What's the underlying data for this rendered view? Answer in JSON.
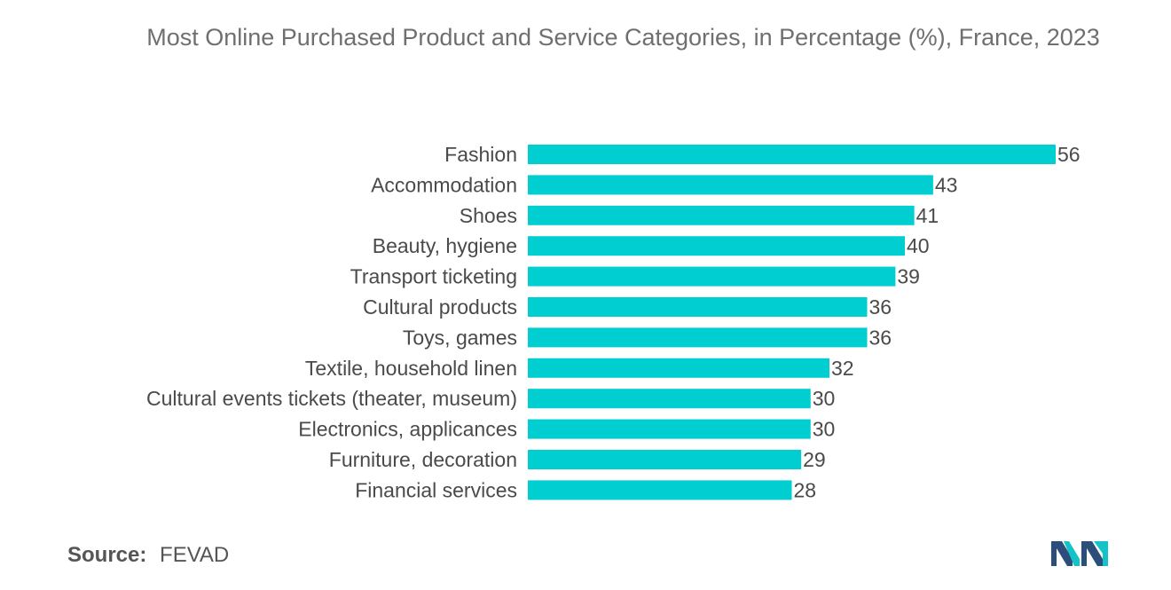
{
  "chart_data": {
    "type": "bar",
    "orientation": "horizontal",
    "title": "Most Online Purchased Product and Service Categories, in Percentage (%), France, 2023",
    "categories": [
      "Fashion",
      "Accommodation",
      "Shoes",
      "Beauty, hygiene",
      "Transport ticketing",
      "Cultural products",
      "Toys, games",
      "Textile, household linen",
      "Cultural events tickets (theater, museum)",
      "Electronics, applicances",
      "Furniture, decoration",
      "Financial services"
    ],
    "values": [
      56,
      43,
      41,
      40,
      39,
      36,
      36,
      32,
      30,
      30,
      29,
      28
    ],
    "xlim": [
      0,
      56
    ],
    "grid": false,
    "legend": "none",
    "bar_color": "#00CED1"
  },
  "source": {
    "label": "Source:",
    "value": "FEVAD"
  },
  "logo": {
    "icon": "mordor-logo-icon",
    "colors": [
      "#2b4f7a",
      "#14c3c8"
    ]
  }
}
